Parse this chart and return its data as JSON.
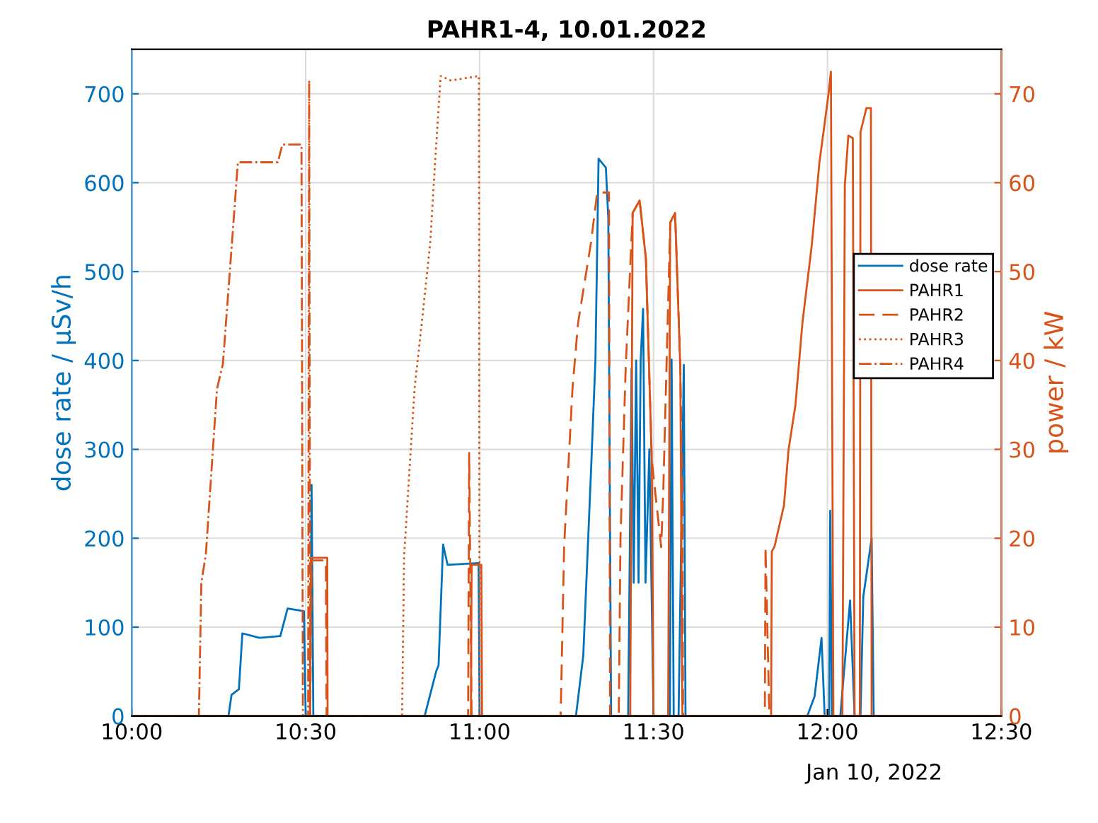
{
  "chart_data": {
    "type": "line",
    "title": "PAHR1-4, 10.01.2022",
    "ylabel": "dose rate / µSv/h",
    "y2label": "power / kW",
    "xlim": [
      10,
      12.5
    ],
    "xticks": [
      {
        "value": 10,
        "label": "10:00"
      },
      {
        "value": 10.5,
        "label": "10:30"
      },
      {
        "value": 11,
        "label": "11:00"
      },
      {
        "value": 11.5,
        "label": "11:30"
      },
      {
        "value": 12,
        "label": "12:00"
      },
      {
        "value": 12.5,
        "label": "12:30"
      }
    ],
    "ylim": [
      0,
      750
    ],
    "yticks": [
      0,
      100,
      200,
      300,
      400,
      500,
      600,
      700
    ],
    "y2lim": [
      0,
      75
    ],
    "y2ticks": [
      0,
      10,
      20,
      30,
      40,
      50,
      60,
      70
    ],
    "grid": true,
    "legend": "right",
    "annotations": [
      "Jan 10, 2022"
    ],
    "series": [
      {
        "name": "dose rate",
        "color": "#0072bd",
        "line_style": "solid",
        "x": [
          10,
          10.278,
          10.287,
          10.308,
          10.318,
          10.367,
          10.427,
          10.448,
          10.495,
          10.5,
          10.512,
          10.517,
          10.522,
          10.842,
          10.875,
          10.882,
          10.895,
          10.908,
          10.997,
          11.0,
          11.277,
          11.298,
          11.32,
          11.333,
          11.342,
          11.363,
          11.37,
          11.378,
          11.427,
          11.437,
          11.443,
          11.45,
          11.457,
          11.463,
          11.47,
          11.477,
          11.488,
          11.5,
          11.547,
          11.552,
          11.558,
          11.572,
          11.587,
          11.592,
          11.942,
          11.963,
          11.983,
          11.992,
          12.005,
          12.008,
          12.013,
          12.037,
          12.065,
          12.078,
          12.095,
          12.103,
          12.127,
          12.133,
          12.5
        ],
        "values": [
          0,
          0,
          24,
          30,
          93,
          88,
          90,
          121,
          118,
          0,
          0,
          260,
          0,
          0,
          50,
          57,
          193,
          170,
          172,
          0,
          0,
          68,
          273,
          401,
          627,
          617,
          560,
          0,
          0,
          391,
          150,
          400,
          150,
          400,
          458,
          150,
          300,
          0,
          0,
          401,
          0,
          0,
          395,
          0,
          0,
          22,
          88,
          0,
          0,
          231,
          0,
          0,
          130,
          0,
          0,
          134,
          200,
          0,
          0
        ]
      },
      {
        "name": "PAHR1",
        "color": "#d95319",
        "axis": "y2",
        "line_style": "solid",
        "x": [
          10,
          10.513,
          10.515,
          10.562,
          10.563,
          10.975,
          10.977,
          11.005,
          11.007,
          11.433,
          11.44,
          11.46,
          11.478,
          11.495,
          11.5,
          11.542,
          11.548,
          11.562,
          11.577,
          11.583,
          11.838,
          11.84,
          11.848,
          11.875,
          11.888,
          11.908,
          11.928,
          11.955,
          11.977,
          11.99,
          12.003,
          12.01,
          12.017,
          12.043,
          12.05,
          12.06,
          12.073,
          12.078,
          12.093,
          12.095,
          12.112,
          12.125,
          12.127,
          12.5
        ],
        "values": [
          0,
          0,
          17.8,
          17.8,
          0,
          0,
          17,
          17,
          0,
          0,
          56.6,
          58,
          51.5,
          28.8,
          0,
          0,
          55.5,
          56.6,
          39.2,
          0,
          0,
          18.5,
          19.1,
          23.7,
          29.9,
          35,
          44.2,
          53,
          62.3,
          66.1,
          70,
          72.5,
          0,
          0,
          59.7,
          65.3,
          65,
          0,
          0,
          65.7,
          68.4,
          68.4,
          0,
          0
        ]
      },
      {
        "name": "PAHR2",
        "color": "#d95319",
        "axis": "y2",
        "line_style": "dashed",
        "x": [
          10,
          10.513,
          10.517,
          10.558,
          10.56,
          10.967,
          10.97,
          10.977,
          11.233,
          11.243,
          11.267,
          11.283,
          11.32,
          11.338,
          11.372,
          11.375,
          11.4,
          11.405,
          11.42,
          11.44,
          11.46,
          11.478,
          11.495,
          11.522,
          11.528,
          11.548,
          11.562,
          11.577,
          11.583,
          11.585,
          11.82,
          11.822,
          11.833,
          12.5
        ],
        "values": [
          0,
          0,
          17.5,
          17.5,
          0,
          0,
          29.6,
          0,
          0,
          19.1,
          36.8,
          44.2,
          53.2,
          58.9,
          58.9,
          0,
          0,
          20,
          39.2,
          56.6,
          58,
          51.5,
          28.8,
          19,
          25.3,
          55.5,
          56.6,
          39.2,
          24,
          0,
          0,
          19,
          0,
          0
        ]
      },
      {
        "name": "PAHR3",
        "color": "#d95319",
        "axis": "y2",
        "line_style": "dotted",
        "x": [
          10,
          10.777,
          10.783,
          10.813,
          10.835,
          10.858,
          10.872,
          10.888,
          10.917,
          10.998,
          11.0,
          12.5
        ],
        "values": [
          0,
          0,
          18,
          36.8,
          44.7,
          53.2,
          62.3,
          72,
          71.5,
          72,
          0,
          0
        ]
      },
      {
        "name": "PAHR4",
        "color": "#d95319",
        "axis": "y2",
        "line_style": "dashdot",
        "x": [
          10,
          10.193,
          10.2,
          10.213,
          10.245,
          10.262,
          10.288,
          10.305,
          10.42,
          10.433,
          10.488,
          10.492,
          10.507,
          10.51,
          10.513,
          12.5
        ],
        "values": [
          0,
          0,
          15,
          18.2,
          36.8,
          39.6,
          53.2,
          62.3,
          62.3,
          64.3,
          64.3,
          0,
          0,
          71.5,
          0,
          0
        ]
      }
    ]
  }
}
